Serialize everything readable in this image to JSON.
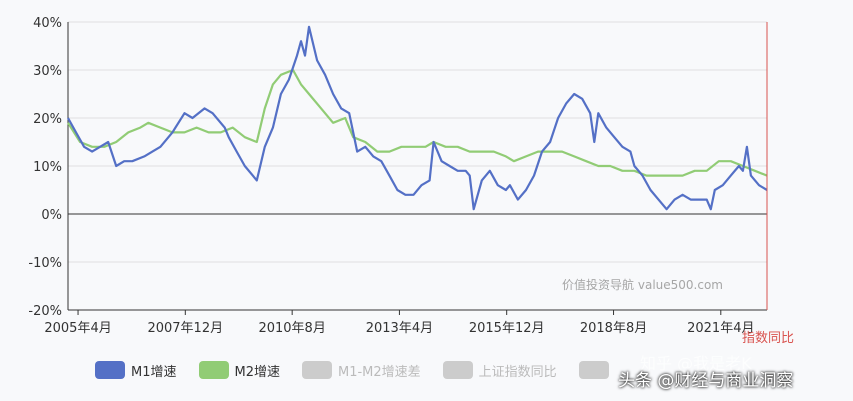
{
  "chart_data": {
    "type": "line",
    "y_ticks": [
      "40%",
      "30%",
      "20%",
      "10%",
      "0%",
      "-10%",
      "-20%"
    ],
    "ylim": [
      -20,
      40
    ],
    "x_ticks": [
      "2005年4月",
      "2007年12月",
      "2010年8月",
      "2013年4月",
      "2015年12月",
      "2018年8月",
      "2021年4月"
    ],
    "series": [
      {
        "name": "M1增速",
        "color": "#5470c6",
        "points": [
          [
            2005.0,
            20
          ],
          [
            2005.2,
            17
          ],
          [
            2005.4,
            14
          ],
          [
            2005.6,
            13
          ],
          [
            2005.8,
            14
          ],
          [
            2006.0,
            15
          ],
          [
            2006.2,
            10
          ],
          [
            2006.4,
            11
          ],
          [
            2006.6,
            11
          ],
          [
            2006.9,
            12
          ],
          [
            2007.1,
            13
          ],
          [
            2007.3,
            14
          ],
          [
            2007.6,
            17
          ],
          [
            2007.9,
            21
          ],
          [
            2008.1,
            20
          ],
          [
            2008.4,
            22
          ],
          [
            2008.6,
            21
          ],
          [
            2008.9,
            18
          ],
          [
            2009.0,
            16
          ],
          [
            2009.2,
            13
          ],
          [
            2009.4,
            10
          ],
          [
            2009.6,
            8
          ],
          [
            2009.7,
            7
          ],
          [
            2009.9,
            14
          ],
          [
            2010.1,
            18
          ],
          [
            2010.3,
            25
          ],
          [
            2010.5,
            28
          ],
          [
            2010.7,
            33
          ],
          [
            2010.8,
            36
          ],
          [
            2010.9,
            33
          ],
          [
            2011.0,
            39
          ],
          [
            2011.2,
            32
          ],
          [
            2011.4,
            29
          ],
          [
            2011.6,
            25
          ],
          [
            2011.8,
            22
          ],
          [
            2012.0,
            21
          ],
          [
            2012.2,
            13
          ],
          [
            2012.4,
            14
          ],
          [
            2012.6,
            12
          ],
          [
            2012.8,
            11
          ],
          [
            2013.0,
            8
          ],
          [
            2013.2,
            5
          ],
          [
            2013.4,
            4
          ],
          [
            2013.6,
            4
          ],
          [
            2013.8,
            6
          ],
          [
            2014.0,
            7
          ],
          [
            2014.1,
            15
          ],
          [
            2014.3,
            11
          ],
          [
            2014.5,
            10
          ],
          [
            2014.7,
            9
          ],
          [
            2014.9,
            9
          ],
          [
            2015.0,
            8
          ],
          [
            2015.1,
            1
          ],
          [
            2015.3,
            7
          ],
          [
            2015.5,
            9
          ],
          [
            2015.7,
            6
          ],
          [
            2015.9,
            5
          ],
          [
            2016.0,
            6
          ],
          [
            2016.2,
            3
          ],
          [
            2016.4,
            5
          ],
          [
            2016.6,
            8
          ],
          [
            2016.8,
            13
          ],
          [
            2017.0,
            15
          ],
          [
            2017.2,
            20
          ],
          [
            2017.4,
            23
          ],
          [
            2017.6,
            25
          ],
          [
            2017.8,
            24
          ],
          [
            2018.0,
            21
          ],
          [
            2018.1,
            15
          ],
          [
            2018.2,
            21
          ],
          [
            2018.4,
            18
          ],
          [
            2018.6,
            16
          ],
          [
            2018.8,
            14
          ],
          [
            2019.0,
            13
          ],
          [
            2019.1,
            10
          ],
          [
            2019.3,
            8
          ],
          [
            2019.5,
            5
          ],
          [
            2019.7,
            3
          ],
          [
            2019.9,
            1
          ],
          [
            2020.1,
            3
          ],
          [
            2020.3,
            4
          ],
          [
            2020.5,
            3
          ],
          [
            2020.7,
            3
          ],
          [
            2020.9,
            3
          ],
          [
            2021.0,
            1
          ],
          [
            2021.1,
            5
          ],
          [
            2021.3,
            6
          ],
          [
            2021.5,
            8
          ],
          [
            2021.7,
            10
          ],
          [
            2021.8,
            9
          ],
          [
            2021.9,
            14
          ],
          [
            2022.0,
            8
          ],
          [
            2022.2,
            6
          ],
          [
            2022.4,
            5
          ]
        ]
      },
      {
        "name": "M2增速",
        "color": "#91cc75",
        "points": [
          [
            2005.0,
            19
          ],
          [
            2005.3,
            15
          ],
          [
            2005.6,
            14
          ],
          [
            2005.9,
            14
          ],
          [
            2006.2,
            15
          ],
          [
            2006.5,
            17
          ],
          [
            2006.8,
            18
          ],
          [
            2007.0,
            19
          ],
          [
            2007.3,
            18
          ],
          [
            2007.6,
            17
          ],
          [
            2007.9,
            17
          ],
          [
            2008.2,
            18
          ],
          [
            2008.5,
            17
          ],
          [
            2008.8,
            17
          ],
          [
            2009.1,
            18
          ],
          [
            2009.4,
            16
          ],
          [
            2009.7,
            15
          ],
          [
            2009.9,
            22
          ],
          [
            2010.1,
            27
          ],
          [
            2010.3,
            29
          ],
          [
            2010.6,
            30
          ],
          [
            2010.8,
            27
          ],
          [
            2011.0,
            25
          ],
          [
            2011.3,
            22
          ],
          [
            2011.6,
            19
          ],
          [
            2011.9,
            20
          ],
          [
            2012.1,
            16
          ],
          [
            2012.4,
            15
          ],
          [
            2012.7,
            13
          ],
          [
            2013.0,
            13
          ],
          [
            2013.3,
            14
          ],
          [
            2013.6,
            14
          ],
          [
            2013.9,
            14
          ],
          [
            2014.1,
            15
          ],
          [
            2014.4,
            14
          ],
          [
            2014.7,
            14
          ],
          [
            2015.0,
            13
          ],
          [
            2015.3,
            13
          ],
          [
            2015.6,
            13
          ],
          [
            2015.9,
            12
          ],
          [
            2016.1,
            11
          ],
          [
            2016.4,
            12
          ],
          [
            2016.7,
            13
          ],
          [
            2017.0,
            13
          ],
          [
            2017.3,
            13
          ],
          [
            2017.6,
            12
          ],
          [
            2017.9,
            11
          ],
          [
            2018.2,
            10
          ],
          [
            2018.5,
            10
          ],
          [
            2018.8,
            9
          ],
          [
            2019.1,
            9
          ],
          [
            2019.4,
            8
          ],
          [
            2019.7,
            8
          ],
          [
            2020.0,
            8
          ],
          [
            2020.3,
            8
          ],
          [
            2020.6,
            9
          ],
          [
            2020.9,
            9
          ],
          [
            2021.2,
            11
          ],
          [
            2021.5,
            11
          ],
          [
            2021.8,
            10
          ],
          [
            2022.1,
            9
          ],
          [
            2022.4,
            8
          ]
        ]
      }
    ],
    "legend": [
      {
        "name": "M1增速",
        "color": "#5470c6",
        "active": true
      },
      {
        "name": "M2增速",
        "color": "#91cc75",
        "active": true
      },
      {
        "name": "M1-M2增速差",
        "color": "#cccccc",
        "active": false
      },
      {
        "name": "上证指数同比",
        "color": "#cccccc",
        "active": false
      }
    ],
    "right_axis_label": "指数同比",
    "source_watermark": "价值投资导航 value500.com"
  },
  "overlay": {
    "line1": "知乎 @我是老K",
    "line2": "头条 @财经与商业洞察"
  }
}
